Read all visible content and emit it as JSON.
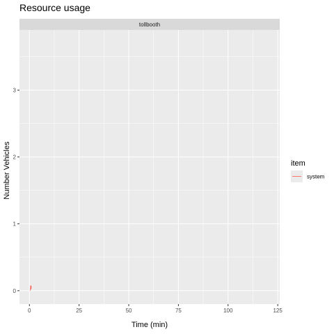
{
  "chart_data": {
    "type": "line",
    "title": "Resource usage",
    "facet": "tollbooth",
    "xlabel": "Time (min)",
    "ylabel": "Number Vehicles",
    "xlim": [
      -5,
      126
    ],
    "ylim": [
      -0.2,
      3.9
    ],
    "x_ticks": [
      0,
      25,
      50,
      75,
      100,
      125
    ],
    "y_ticks": [
      0,
      1,
      2,
      3
    ],
    "grid": true,
    "legend": {
      "title": "item",
      "position": "right",
      "entries": [
        "system"
      ]
    },
    "series": [
      {
        "name": "system",
        "color": "#f8766d",
        "x": [
          0.4,
          0.6,
          0.8,
          1.0
        ],
        "y": [
          0.0,
          0.08,
          0.02,
          0.07
        ]
      }
    ]
  },
  "colors": {
    "panel_bg": "#ebebeb",
    "strip_bg": "#d9d9d9",
    "grid_major": "#ffffff",
    "series_system": "#f8766d"
  }
}
